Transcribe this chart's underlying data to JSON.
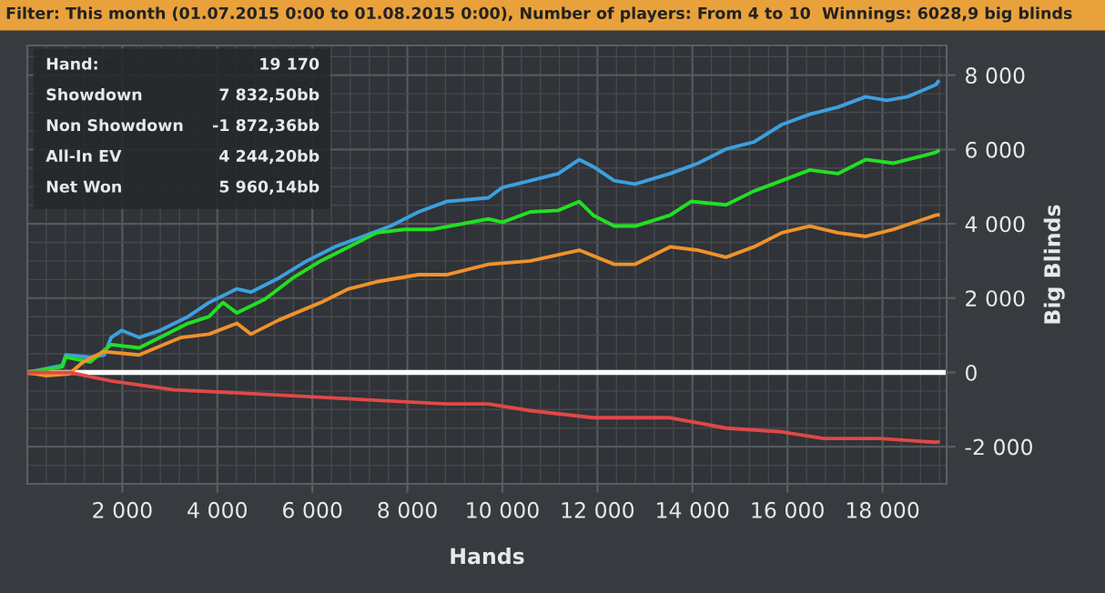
{
  "chart_data": {
    "type": "line",
    "title": "Filter: This month (01.07.2015 0:00 to 01.08.2015 0:00), Number of players: From 4 to 10",
    "subtitle": "Winnings: 6028,9 big blinds",
    "xlabel": "Hands",
    "ylabel": "Big Blinds",
    "annotations": [
      "Hand:",
      "19 170",
      "Showdown",
      "7 832,50bb",
      "Non Showdown",
      "-1 872,36bb",
      "All-In EV",
      "4 244,20bb",
      "Net Won",
      "5 960,14bb"
    ],
    "series": [
      {
        "color": "#3da0e0",
        "x": [
          0,
          735,
          809,
          1324,
          1618,
          1765,
          1985,
          2353,
          2794,
          3382,
          3824,
          4412,
          4706,
          5294,
          5882,
          6471,
          7059,
          7647,
          8235,
          8824,
          9706,
          10000,
          10588,
          11176,
          11618,
          11912,
          12353,
          12794,
          13529,
          14118,
          14706,
          15294,
          15882,
          16471,
          17059,
          17647,
          18088,
          18529,
          19118,
          19170
        ],
        "values": [
          0,
          190,
          470,
          410,
          470,
          940,
          1130,
          940,
          1130,
          1500,
          1880,
          2250,
          2160,
          2540,
          3000,
          3380,
          3660,
          3940,
          4320,
          4600,
          4700,
          4980,
          5160,
          5350,
          5730,
          5540,
          5160,
          5070,
          5350,
          5630,
          6010,
          6200,
          6670,
          6950,
          7140,
          7420,
          7320,
          7420,
          7740,
          7830
        ]
      },
      {
        "color": "#22e022",
        "x": [
          0,
          735,
          809,
          1324,
          1765,
          2353,
          2794,
          3382,
          3824,
          4118,
          4412,
          5000,
          5588,
          6176,
          6765,
          7353,
          7941,
          8529,
          9706,
          10000,
          10588,
          11176,
          11618,
          11912,
          12353,
          12794,
          13529,
          13971,
          14706,
          15294,
          15882,
          16471,
          17059,
          17647,
          18235,
          19118,
          19170
        ],
        "values": [
          0,
          150,
          410,
          280,
          750,
          660,
          940,
          1320,
          1500,
          1880,
          1600,
          1970,
          2540,
          3000,
          3380,
          3760,
          3850,
          3850,
          4130,
          4040,
          4320,
          4360,
          4600,
          4230,
          3940,
          3940,
          4230,
          4600,
          4510,
          4880,
          5160,
          5450,
          5350,
          5730,
          5630,
          5920,
          5960
        ]
      },
      {
        "color": "#f0922b",
        "x": [
          0,
          400,
          882,
          1176,
          1618,
          2353,
          3235,
          3824,
          4412,
          4706,
          5294,
          6176,
          6765,
          7353,
          8235,
          8824,
          9706,
          10588,
          11618,
          12353,
          12794,
          13529,
          14118,
          14706,
          15294,
          15882,
          16471,
          17059,
          17647,
          18235,
          19118,
          19170
        ],
        "values": [
          0,
          -90,
          -40,
          280,
          560,
          470,
          940,
          1030,
          1320,
          1030,
          1410,
          1880,
          2250,
          2440,
          2630,
          2630,
          2910,
          3000,
          3290,
          2910,
          2910,
          3380,
          3290,
          3100,
          3380,
          3760,
          3940,
          3760,
          3660,
          3850,
          4230,
          4240
        ]
      },
      {
        "color": "#e04848",
        "x": [
          0,
          882,
          1765,
          3088,
          4559,
          6029,
          7353,
          8824,
          9706,
          10588,
          11912,
          13529,
          14706,
          15882,
          16765,
          17941,
          19118,
          19170
        ],
        "values": [
          0,
          0,
          -230,
          -470,
          -560,
          -660,
          -750,
          -850,
          -850,
          -1030,
          -1220,
          -1220,
          -1500,
          -1600,
          -1780,
          -1780,
          -1880,
          -1870
        ]
      }
    ],
    "xlim": [
      0,
      19350
    ],
    "ylim": [
      -3000,
      8800
    ],
    "xticks": [
      {
        "value": 2000,
        "label": "2 000"
      },
      {
        "value": 4000,
        "label": "4 000"
      },
      {
        "value": 6000,
        "label": "6 000"
      },
      {
        "value": 8000,
        "label": "8 000"
      },
      {
        "value": 10000,
        "label": "10 000"
      },
      {
        "value": 12000,
        "label": "12 000"
      },
      {
        "value": 14000,
        "label": "14 000"
      },
      {
        "value": 16000,
        "label": "16 000"
      },
      {
        "value": 18000,
        "label": "18 000"
      }
    ],
    "yticks": [
      {
        "value": -2000,
        "label": "-2 000"
      },
      0,
      {
        "value": 2000,
        "label": "2 000"
      },
      {
        "value": 4000,
        "label": "4 000"
      },
      {
        "value": 6000,
        "label": "6 000"
      },
      {
        "value": 8000,
        "label": "8 000"
      }
    ],
    "ref_lines": [
      {
        "axis": "y",
        "value": 0,
        "color": "#ffffff"
      }
    ],
    "grid": true,
    "legend": false,
    "line_style": "solid",
    "marker": "none"
  }
}
